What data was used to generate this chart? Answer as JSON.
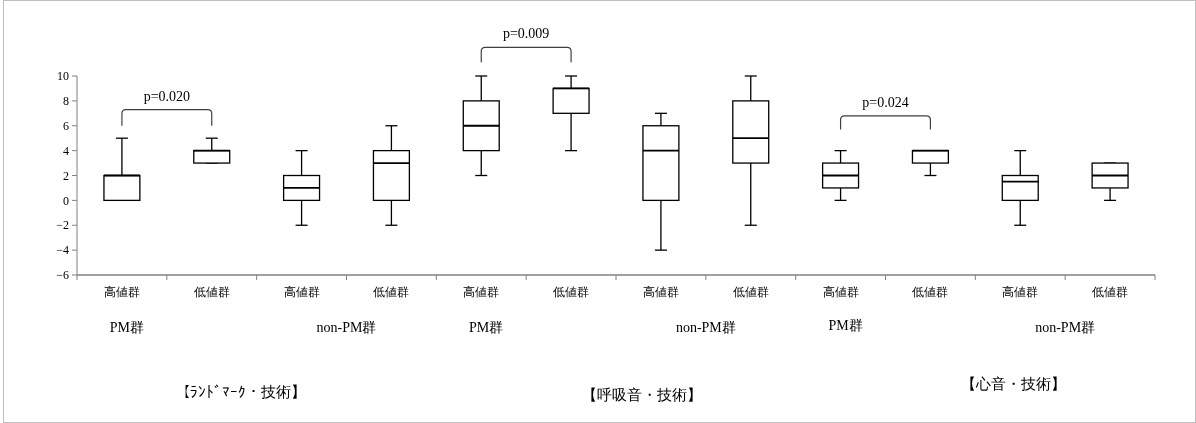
{
  "chart_data": {
    "type": "box",
    "categories": [
      "高値群",
      "低値群",
      "高値群",
      "低値群",
      "高値群",
      "低値群",
      "高値群",
      "低値群",
      "高値群",
      "低値群",
      "高値群",
      "低値群"
    ],
    "boxes": [
      {
        "low": 0,
        "q1": 0,
        "median": 2,
        "q3": 2,
        "high": 5
      },
      {
        "low": 3,
        "q1": 3,
        "median": 4,
        "q3": 4,
        "high": 5
      },
      {
        "low": -2,
        "q1": 0,
        "median": 1,
        "q3": 2,
        "high": 4
      },
      {
        "low": -2,
        "q1": 0,
        "median": 3,
        "q3": 4,
        "high": 6
      },
      {
        "low": 2,
        "q1": 4,
        "median": 6,
        "q3": 8,
        "high": 10
      },
      {
        "low": 4,
        "q1": 7,
        "median": 9,
        "q3": 9,
        "high": 10
      },
      {
        "low": -4,
        "q1": 0,
        "median": 4,
        "q3": 6,
        "high": 7
      },
      {
        "low": -2,
        "q1": 3,
        "median": 5,
        "q3": 8,
        "high": 10
      },
      {
        "low": 0,
        "q1": 1,
        "median": 2,
        "q3": 3,
        "high": 4
      },
      {
        "low": 2,
        "q1": 3,
        "median": 4,
        "q3": 4,
        "high": 4
      },
      {
        "low": -2,
        "q1": 0,
        "median": 1.5,
        "q3": 2,
        "high": 4
      },
      {
        "low": 0,
        "q1": 1,
        "median": 2,
        "q3": 3,
        "high": 3
      }
    ],
    "color": "#000000",
    "ylim": [
      -6,
      10
    ],
    "yticks": [
      -6,
      -4,
      -2,
      0,
      2,
      4,
      6,
      8,
      10
    ],
    "grid": false,
    "annotations": [
      "p=0.020",
      "p=0.009",
      "p=0.024",
      "PM群",
      "non-PM群",
      "PM群",
      "non-PM群",
      "PM群",
      "non-PM群",
      "【ﾗﾝﾄﾞﾏｰｸ・技術】",
      "【呼吸音・技術】",
      "【心音・技術】"
    ]
  }
}
